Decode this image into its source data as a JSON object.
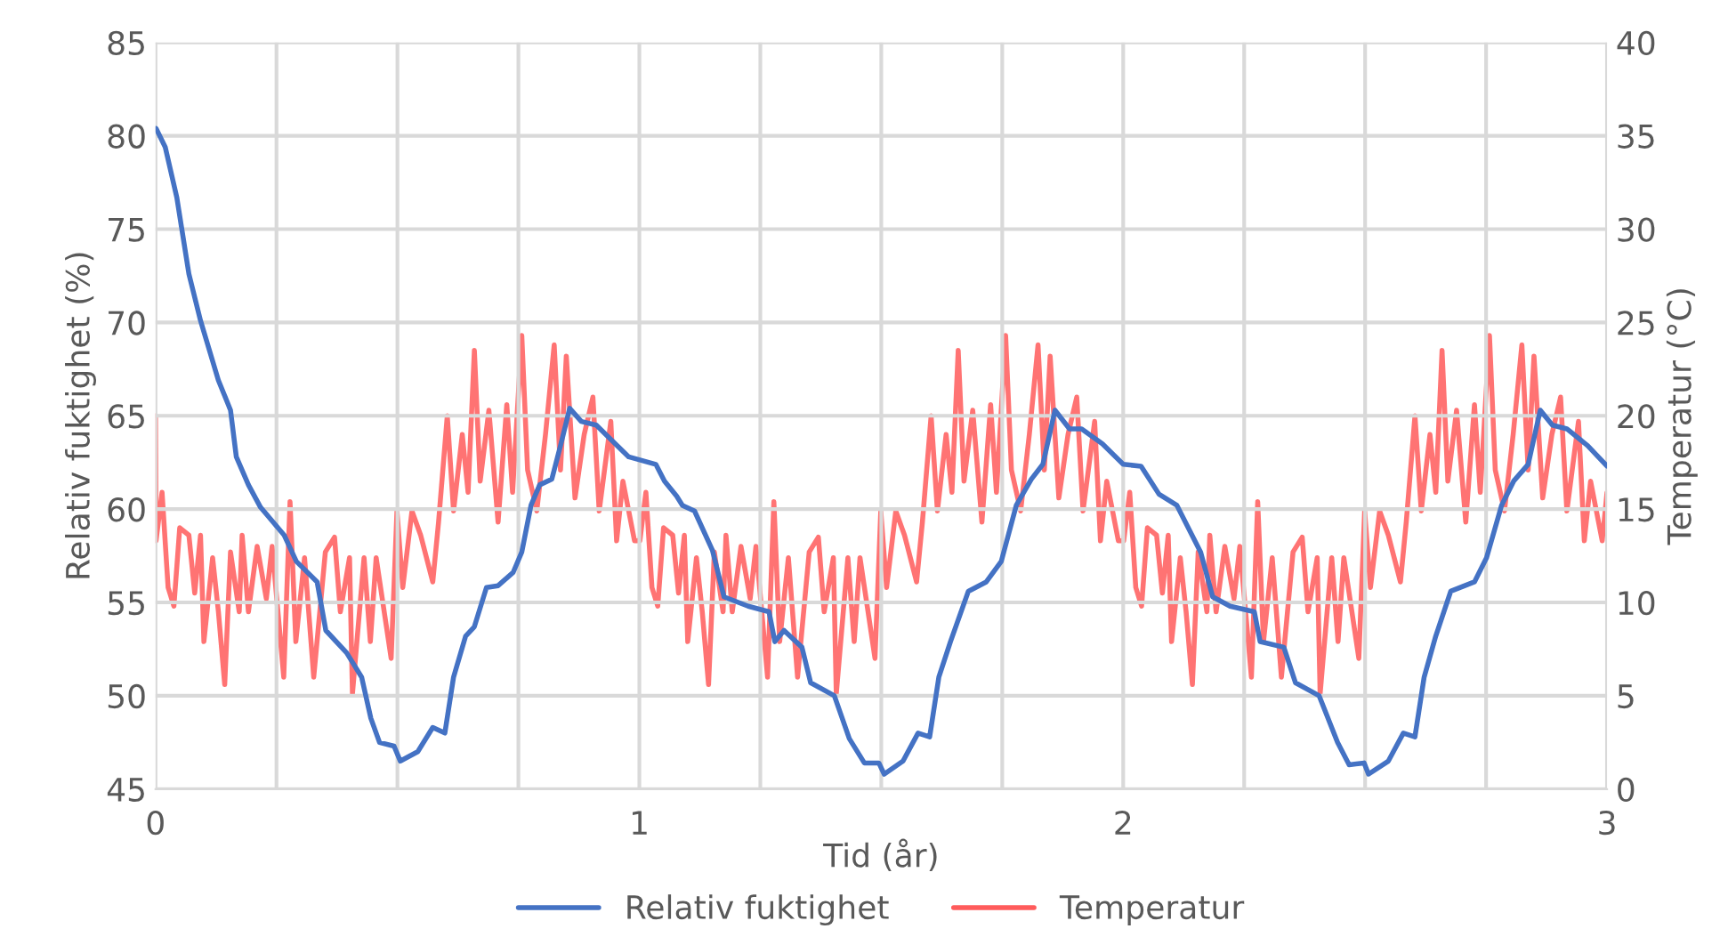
{
  "chart_data": {
    "type": "line",
    "xlabel": "Tid (år)",
    "ylabel": "Relativ fuktighet (%)",
    "y2label": "Temperatur (°C)",
    "xlim": [
      0,
      3
    ],
    "xticks": [
      0,
      {
        "value": 0.25,
        "label": null
      },
      {
        "value": 0.5,
        "label": null
      },
      {
        "value": 0.75,
        "label": null
      },
      1,
      {
        "value": 1.25,
        "label": null
      },
      {
        "value": 1.5,
        "label": null
      },
      {
        "value": 1.75,
        "label": null
      },
      2,
      {
        "value": 2.25,
        "label": null
      },
      {
        "value": 2.5,
        "label": null
      },
      {
        "value": 2.75,
        "label": null
      },
      3
    ],
    "ylim": [
      45,
      85
    ],
    "yticks": [
      45,
      50,
      55,
      60,
      65,
      70,
      75,
      80,
      85
    ],
    "y2lim": [
      0,
      40
    ],
    "y2ticks": [
      0,
      5,
      10,
      15,
      20,
      25,
      30,
      35,
      40
    ],
    "grid": true,
    "legend": "bottom",
    "line_style": "solid",
    "marker": "none",
    "series": [
      {
        "name": "Relativ fuktighet",
        "color": "#4472c4",
        "x": [
          0.001,
          0.02,
          0.044,
          0.069,
          0.093,
          0.13,
          0.155,
          0.167,
          0.192,
          0.217,
          0.266,
          0.291,
          0.334,
          0.352,
          0.395,
          0.426,
          0.445,
          0.463,
          0.493,
          0.506,
          0.542,
          0.573,
          0.598,
          0.616,
          0.641,
          0.659,
          0.684,
          0.708,
          0.739,
          0.757,
          0.776,
          0.794,
          0.819,
          0.837,
          0.856,
          0.88,
          0.911,
          0.954,
          0.978,
          1.034,
          1.052,
          1.077,
          1.089,
          1.114,
          1.151,
          1.175,
          1.225,
          1.268,
          1.28,
          1.299,
          1.336,
          1.354,
          1.403,
          1.434,
          1.465,
          1.495,
          1.506,
          1.545,
          1.576,
          1.6,
          1.619,
          1.643,
          1.68,
          1.717,
          1.748,
          1.779,
          1.81,
          1.834,
          1.859,
          1.889,
          1.914,
          1.957,
          2.0,
          2.037,
          2.074,
          2.111,
          2.16,
          2.185,
          2.221,
          2.271,
          2.283,
          2.332,
          2.356,
          2.405,
          2.443,
          2.467,
          2.498,
          2.507,
          2.548,
          2.579,
          2.603,
          2.622,
          2.646,
          2.677,
          2.726,
          2.751,
          2.782,
          2.807,
          2.837,
          2.862,
          2.887,
          2.917,
          2.96,
          3.0
        ],
        "values": [
          80.4,
          79.4,
          76.7,
          72.6,
          70.1,
          66.9,
          65.3,
          62.8,
          61.3,
          60.1,
          58.6,
          57.2,
          56.1,
          53.5,
          52.3,
          51.0,
          48.8,
          47.5,
          47.3,
          46.5,
          47.0,
          48.3,
          48.0,
          51.0,
          53.2,
          53.7,
          55.8,
          55.9,
          56.6,
          57.7,
          60.2,
          61.3,
          61.6,
          63.4,
          65.4,
          64.7,
          64.5,
          63.4,
          62.8,
          62.4,
          61.5,
          60.7,
          60.2,
          59.9,
          57.8,
          55.3,
          54.8,
          54.5,
          52.9,
          53.5,
          52.6,
          50.7,
          50.0,
          47.7,
          46.4,
          46.4,
          45.8,
          46.5,
          48.0,
          47.8,
          51.0,
          52.9,
          55.6,
          56.1,
          57.2,
          60.2,
          61.6,
          62.4,
          65.3,
          64.3,
          64.3,
          63.5,
          62.4,
          62.3,
          60.8,
          60.2,
          57.7,
          55.3,
          54.8,
          54.5,
          52.9,
          52.6,
          50.7,
          50.0,
          47.5,
          46.3,
          46.4,
          45.8,
          46.5,
          48.0,
          47.8,
          51.0,
          53.2,
          55.6,
          56.1,
          57.4,
          60.2,
          61.5,
          62.4,
          65.3,
          64.5,
          64.3,
          63.4,
          62.3
        ]
      },
      {
        "name": "Temperatur",
        "color": "#ff5b5b",
        "axis": "y2",
        "x": [
          0,
          0.001,
          0.0135,
          0.026,
          0.038,
          0.05,
          0.069,
          0.081,
          0.093,
          0.1,
          0.118,
          0.13,
          0.143,
          0.155,
          0.173,
          0.179,
          0.192,
          0.21,
          0.229,
          0.241,
          0.265,
          0.278,
          0.29,
          0.308,
          0.327,
          0.351,
          0.37,
          0.382,
          0.401,
          0.407,
          0.431,
          0.444,
          0.456,
          0.487,
          0.499,
          0.511,
          0.53,
          0.548,
          0.573,
          0.585,
          0.603,
          0.616,
          0.634,
          0.646,
          0.659,
          0.671,
          0.689,
          0.708,
          0.726,
          0.738,
          0.757,
          0.769,
          0.788,
          0.806,
          0.824,
          0.837,
          0.849,
          0.867,
          0.886,
          0.904,
          0.917,
          0.941,
          0.953,
          0.966,
          0.99,
          1.001,
          1.0135,
          1.026,
          1.038,
          1.05,
          1.069,
          1.081,
          1.093,
          1.1,
          1.118,
          1.13,
          1.143,
          1.155,
          1.173,
          1.179,
          1.192,
          1.21,
          1.229,
          1.241,
          1.265,
          1.278,
          1.29,
          1.308,
          1.327,
          1.351,
          1.37,
          1.382,
          1.401,
          1.407,
          1.431,
          1.444,
          1.456,
          1.487,
          1.499,
          1.511,
          1.53,
          1.548,
          1.573,
          1.585,
          1.603,
          1.616,
          1.634,
          1.646,
          1.659,
          1.671,
          1.689,
          1.708,
          1.726,
          1.738,
          1.757,
          1.769,
          1.788,
          1.806,
          1.824,
          1.837,
          1.849,
          1.867,
          1.886,
          1.904,
          1.917,
          1.941,
          1.953,
          1.966,
          1.99,
          2.001,
          2.0135,
          2.026,
          2.038,
          2.05,
          2.069,
          2.081,
          2.093,
          2.1,
          2.118,
          2.13,
          2.143,
          2.155,
          2.173,
          2.179,
          2.192,
          2.21,
          2.229,
          2.241,
          2.265,
          2.278,
          2.29,
          2.308,
          2.327,
          2.351,
          2.37,
          2.382,
          2.401,
          2.407,
          2.431,
          2.444,
          2.456,
          2.487,
          2.499,
          2.511,
          2.53,
          2.548,
          2.573,
          2.585,
          2.603,
          2.616,
          2.634,
          2.646,
          2.659,
          2.671,
          2.689,
          2.708,
          2.726,
          2.738,
          2.757,
          2.769,
          2.788,
          2.806,
          2.824,
          2.837,
          2.849,
          2.867,
          2.886,
          2.904,
          2.917,
          2.941,
          2.953,
          2.966,
          2.99,
          3.0
        ],
        "values": [
          20.0,
          13.3,
          15.9,
          10.8,
          9.8,
          14.0,
          13.6,
          10.5,
          13.6,
          7.9,
          12.4,
          9.5,
          5.6,
          12.7,
          9.5,
          13.6,
          9.5,
          13.0,
          10.2,
          13.0,
          6.0,
          15.4,
          7.9,
          12.4,
          6.0,
          12.7,
          13.5,
          9.5,
          12.4,
          5.1,
          12.4,
          7.9,
          12.4,
          7.0,
          14.9,
          10.8,
          14.9,
          13.6,
          11.1,
          14.3,
          20.0,
          14.9,
          19.0,
          15.9,
          23.5,
          16.5,
          20.3,
          14.3,
          20.6,
          15.9,
          24.3,
          17.1,
          14.9,
          19.0,
          23.8,
          17.1,
          23.2,
          15.6,
          19.0,
          21.0,
          14.9,
          19.7,
          13.3,
          16.5,
          13.3,
          13.3,
          15.9,
          10.8,
          9.8,
          14.0,
          13.6,
          10.5,
          13.6,
          7.9,
          12.4,
          9.5,
          5.6,
          12.7,
          9.5,
          13.6,
          9.5,
          13.0,
          10.2,
          13.0,
          6.0,
          15.4,
          7.9,
          12.4,
          6.0,
          12.7,
          13.5,
          9.5,
          12.4,
          5.1,
          12.4,
          7.9,
          12.4,
          7.0,
          14.9,
          10.8,
          14.9,
          13.6,
          11.1,
          14.3,
          20.0,
          14.9,
          19.0,
          15.9,
          23.5,
          16.5,
          20.3,
          14.3,
          20.6,
          15.9,
          24.3,
          17.1,
          14.9,
          19.0,
          23.8,
          17.1,
          23.2,
          15.6,
          19.0,
          21.0,
          14.9,
          19.7,
          13.3,
          16.5,
          13.3,
          13.3,
          15.9,
          10.8,
          9.8,
          14.0,
          13.6,
          10.5,
          13.6,
          7.9,
          12.4,
          9.5,
          5.6,
          12.7,
          9.5,
          13.6,
          9.5,
          13.0,
          10.2,
          13.0,
          6.0,
          15.4,
          7.9,
          12.4,
          6.0,
          12.7,
          13.5,
          9.5,
          12.4,
          5.1,
          12.4,
          7.9,
          12.4,
          7.0,
          14.9,
          10.8,
          14.9,
          13.6,
          11.1,
          14.3,
          20.0,
          14.9,
          19.0,
          15.9,
          23.5,
          16.5,
          20.3,
          14.3,
          20.6,
          15.9,
          24.3,
          17.1,
          14.9,
          19.0,
          23.8,
          17.1,
          23.2,
          15.6,
          19.0,
          21.0,
          14.9,
          19.7,
          13.3,
          16.5,
          13.3,
          15.9
        ]
      }
    ]
  }
}
